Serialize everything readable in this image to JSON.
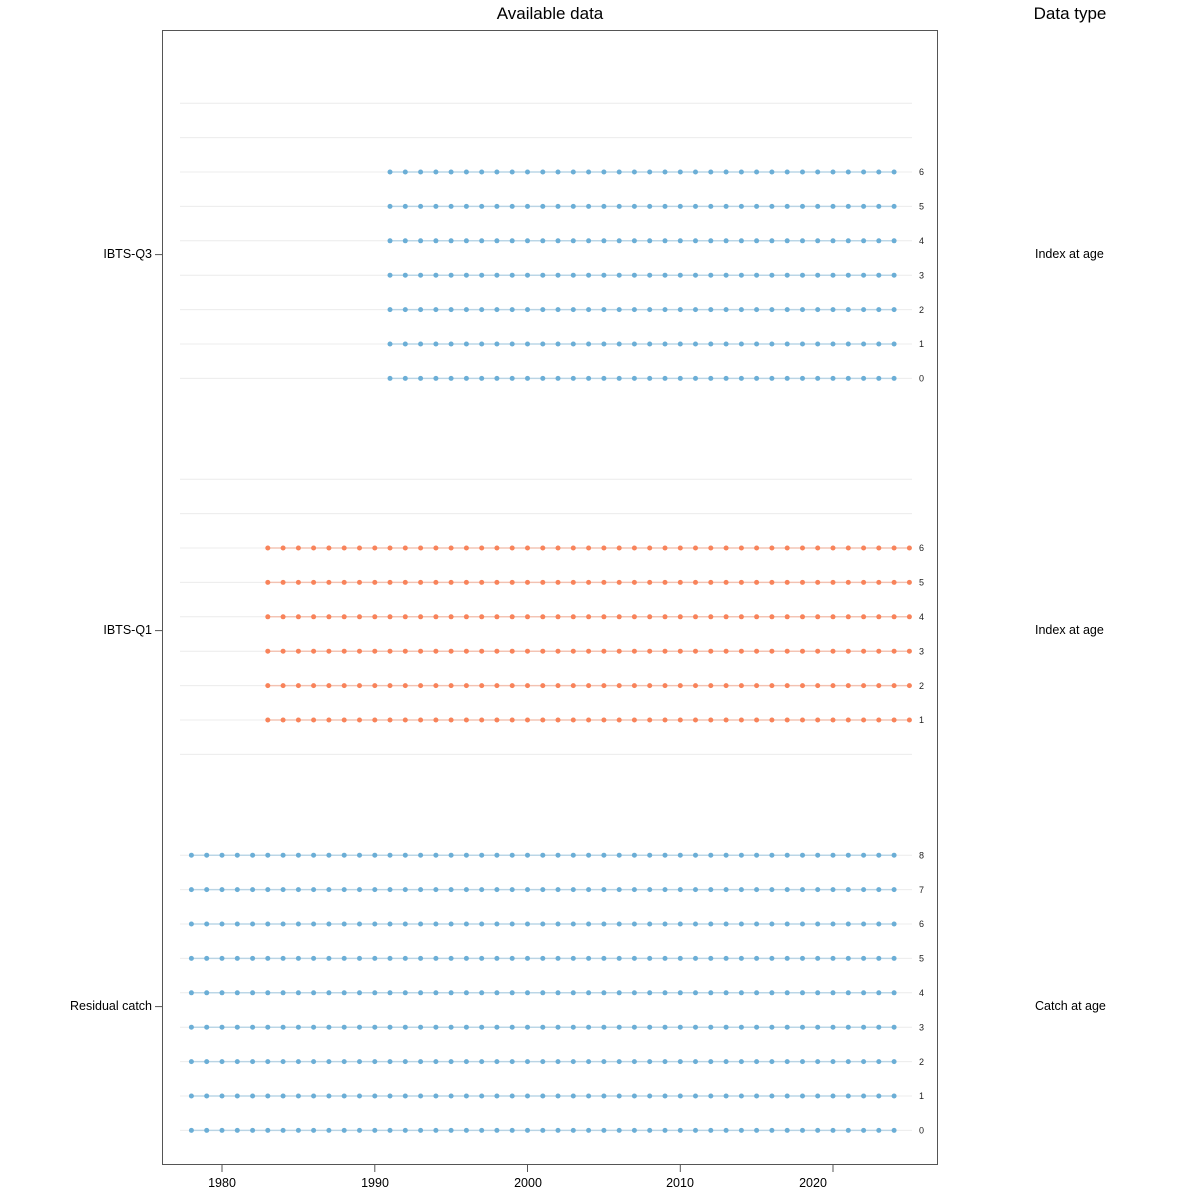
{
  "title": "Available data",
  "right_title": "Data type",
  "x_axis": {
    "tick_labels": [
      "1980",
      "1990",
      "2000",
      "2010",
      "2020"
    ],
    "tick_years": [
      1980,
      1990,
      2000,
      2010,
      2020
    ]
  },
  "chart_data": {
    "type": "scatter",
    "title": "Available data",
    "description": "Data availability by fleet, age and year; one dot per year with data",
    "x_range": [
      1976,
      2026
    ],
    "x_ticks": [
      1980,
      1990,
      2000,
      2010,
      2020
    ],
    "age_axis_rows": [
      8,
      7,
      6,
      5,
      4,
      3,
      2,
      1,
      0
    ],
    "grid": true,
    "colors": {
      "index_blue": "#6baed6",
      "index_orange": "#f8835a",
      "gridline": "#ececec"
    },
    "fleets": [
      {
        "name": "IBTS-Q3",
        "data_type": "Index at age",
        "color": "#6baed6",
        "ages": [
          6,
          5,
          4,
          3,
          2,
          1,
          0
        ],
        "year_start": 1991,
        "year_end": 2024
      },
      {
        "name": "IBTS-Q1",
        "data_type": "Index at age",
        "color": "#f8835a",
        "ages": [
          6,
          5,
          4,
          3,
          2,
          1
        ],
        "year_start": 1983,
        "year_end": 2025
      },
      {
        "name": "Residual catch",
        "data_type": "Catch at age",
        "color": "#6baed6",
        "ages": [
          8,
          7,
          6,
          5,
          4,
          3,
          2,
          1,
          0
        ],
        "year_start": 1978,
        "year_end": 2024
      }
    ]
  }
}
